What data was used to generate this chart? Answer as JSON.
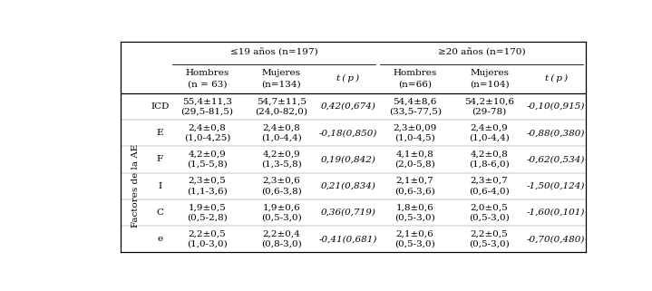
{
  "col_groups": [
    {
      "label": "≤19 años (n=197)"
    },
    {
      "label": "≥20 años (n=170)"
    }
  ],
  "col_headers": [
    "Hombres\n(n = 63)",
    "Mujeres\n(n=134)",
    "t (p)",
    "Hombres\n(n=66)",
    "Mujeres\n(n=104)",
    "t(p)"
  ],
  "row_groups": [
    {
      "group_label": "",
      "row_label": "ICD",
      "cells": [
        "55,4±11,3\n(29,5-81,5)",
        "54,7±11,5\n(24,0-82,0)",
        "0,42(0,674)",
        "54,4±8,6\n(33,5-77,5)",
        "54,2±10,6\n(29-78)",
        "-0,10(0,915)"
      ]
    },
    {
      "group_label": "Factores de la AE",
      "row_label": "E",
      "cells": [
        "2,4±0,8\n(1,0-4,25)",
        "2,4±0,8\n(1,0-4,4)",
        "-0,18(0,850)",
        "2,3±0,09\n(1,0-4,5)",
        "2,4±0,9\n(1,0-4,4)",
        "-0,88(0,380)"
      ]
    },
    {
      "group_label": "Factores de la AE",
      "row_label": "F",
      "cells": [
        "4,2±0,9\n(1,5-5,8)",
        "4,2±0,9\n(1,3-5,8)",
        "0,19(0,842)",
        "4,1±0,8\n(2,0-5,8)",
        "4,2±0,8\n(1,8-6,0)",
        "-0,62(0,534)"
      ]
    },
    {
      "group_label": "Factores de la AE",
      "row_label": "I",
      "cells": [
        "2,3±0,5\n(1,1-3,6)",
        "2,3±0,6\n(0,6-3,8)",
        "0,21(0,834)",
        "2,1±0,7\n(0,6-3,6)",
        "2,3±0,7\n(0,6-4,0)",
        "-1,50(0,124)"
      ]
    },
    {
      "group_label": "Factores de la AE",
      "row_label": "C",
      "cells": [
        "1,9±0,5\n(0,5-2,8)",
        "1,9±0,6\n(0,5-3,0)",
        "0,36(0,719)",
        "1,8±0,6\n(0,5-3,0)",
        "2,0±0,5\n(0,5-3,0)",
        "-1,60(0,101)"
      ]
    },
    {
      "group_label": "Factores de la AE",
      "row_label": "e",
      "cells": [
        "2,2±0,5\n(1,0-3,0)",
        "2,2±0,4\n(0,8-3,0)",
        "-0,41(0,681)",
        "2,1±0,6\n(0,5-3,0)",
        "2,2±0,5\n(0,5-3,0)",
        "-0,70(0,480)"
      ]
    }
  ],
  "font_size": 7.5
}
